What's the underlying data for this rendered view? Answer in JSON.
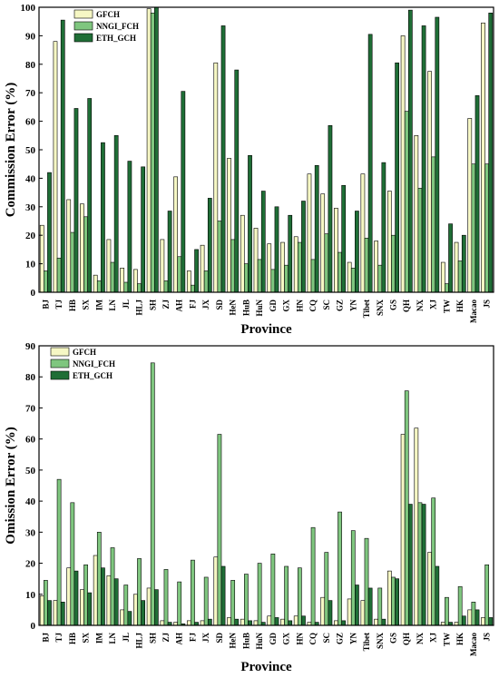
{
  "colors": {
    "GFCH": "#f6f7c4",
    "NNGI_FCH": "#7fc67f",
    "ETH_GCH": "#1f6e36"
  },
  "chart_data": [
    {
      "type": "bar",
      "xlabel": "Province",
      "ylabel": "Commission Error (%)",
      "ylim": [
        0,
        100
      ],
      "yticks": [
        0,
        10,
        20,
        30,
        40,
        50,
        60,
        70,
        80,
        90,
        100
      ],
      "grid": false,
      "legend": "top-left",
      "categories": [
        "BJ",
        "TJ",
        "HB",
        "SX",
        "IM",
        "LN",
        "JL",
        "HLJ",
        "SH",
        "ZJ",
        "AH",
        "FJ",
        "JX",
        "SD",
        "HeN",
        "HuB",
        "HuN",
        "GD",
        "GX",
        "HN",
        "CQ",
        "SC",
        "GZ",
        "YN",
        "Tibet",
        "SNX",
        "GS",
        "QH",
        "NX",
        "XJ",
        "TW",
        "HK",
        "Macao",
        "JS"
      ],
      "series": [
        {
          "name": "GFCH",
          "values": [
            23.5,
            88,
            32.5,
            31,
            6,
            18.5,
            8.5,
            8,
            99.5,
            18.5,
            40.5,
            7.5,
            16.5,
            80.5,
            47,
            27,
            22.5,
            17,
            17.5,
            19.5,
            41.5,
            34.5,
            29.5,
            10.5,
            41.5,
            18,
            35.5,
            90,
            55,
            77.5,
            10.5,
            17.5,
            61,
            94.5
          ]
        },
        {
          "name": "NNGI_FCH",
          "values": [
            7.5,
            12,
            21,
            26.5,
            4,
            10.5,
            3.5,
            3,
            98,
            4,
            12.5,
            2.5,
            7.5,
            25,
            18.5,
            10,
            11.5,
            8,
            9.5,
            17.5,
            11.5,
            20.5,
            14,
            8.5,
            19,
            9.5,
            20,
            63.5,
            36.5,
            47.5,
            3,
            11,
            45,
            45
          ]
        },
        {
          "name": "ETH_GCH",
          "values": [
            42,
            95.5,
            64.5,
            68,
            52.5,
            55,
            46,
            44,
            100,
            28.5,
            70.5,
            15,
            33,
            93.5,
            78,
            48,
            35.5,
            30,
            27,
            32,
            44.5,
            58.5,
            37.5,
            28.5,
            90.5,
            45.5,
            80.5,
            99,
            93.5,
            96.5,
            24,
            20,
            69,
            98
          ]
        }
      ]
    },
    {
      "type": "bar",
      "xlabel": "Province",
      "ylabel": "Omission Error (%)",
      "ylim": [
        0,
        90
      ],
      "yticks": [
        0,
        10,
        20,
        30,
        40,
        50,
        60,
        70,
        80,
        90
      ],
      "grid": false,
      "legend": "top-left",
      "categories": [
        "BJ",
        "TJ",
        "HB",
        "SX",
        "IM",
        "LN",
        "JL",
        "HLJ",
        "SH",
        "ZJ",
        "AH",
        "FJ",
        "JX",
        "SD",
        "HeN",
        "HuB",
        "HuN",
        "GD",
        "GX",
        "HN",
        "CQ",
        "SC",
        "GZ",
        "YN",
        "Tibet",
        "SNX",
        "GS",
        "QH",
        "NX",
        "XJ",
        "TW",
        "HK",
        "Macao",
        "JS"
      ],
      "series": [
        {
          "name": "GFCH",
          "values": [
            9.5,
            8,
            18.5,
            11.5,
            22.5,
            16,
            5,
            10,
            12,
            1.5,
            1,
            1.5,
            1.5,
            22,
            2.5,
            2,
            1.5,
            3,
            2,
            3,
            1,
            9,
            1.5,
            8.5,
            8,
            2,
            17.5,
            61.5,
            63.5,
            23.5,
            1,
            1,
            5,
            2.5
          ]
        },
        {
          "name": "NNGI_FCH",
          "values": [
            14.5,
            47,
            39.5,
            19.5,
            30,
            25,
            13,
            21.5,
            84.5,
            18,
            14,
            21,
            15.5,
            61.5,
            14.5,
            16.5,
            20,
            23,
            19,
            18.5,
            31.5,
            23.5,
            36.5,
            30.5,
            28,
            12,
            15.5,
            75.5,
            39.5,
            41,
            9,
            12.5,
            7.5,
            19.5
          ]
        },
        {
          "name": "ETH_GCH",
          "values": [
            8,
            7.5,
            17.5,
            10.5,
            18.5,
            15,
            4.5,
            8,
            11.5,
            1,
            0.5,
            1,
            2,
            19,
            2,
            1.5,
            1,
            2.5,
            1.5,
            3,
            1,
            8,
            1.5,
            13,
            12,
            2,
            15,
            39,
            39,
            19,
            1,
            3,
            5,
            2.5
          ]
        }
      ]
    }
  ]
}
